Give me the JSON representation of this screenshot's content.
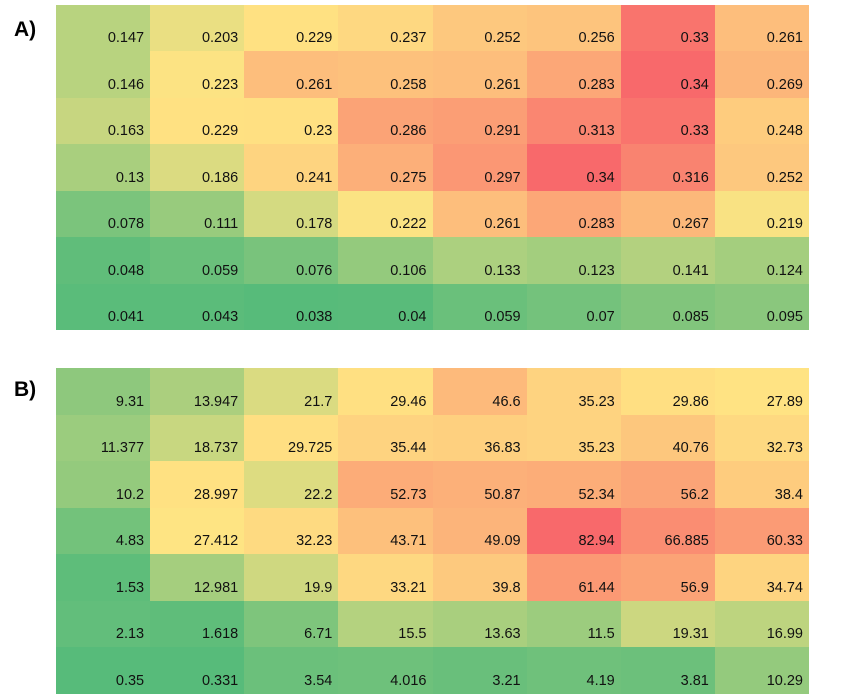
{
  "panels": [
    {
      "label": "A)"
    },
    {
      "label": "B)"
    }
  ],
  "chart_data": [
    {
      "type": "heatmap",
      "title": "A)",
      "color_scale": {
        "low": "#57bb7a",
        "mid": "#ffe483",
        "high": "#f8696b"
      },
      "values": [
        [
          0.147,
          0.203,
          0.229,
          0.237,
          0.252,
          0.256,
          0.33,
          0.261
        ],
        [
          0.146,
          0.223,
          0.261,
          0.258,
          0.261,
          0.283,
          0.34,
          0.269
        ],
        [
          0.163,
          0.229,
          0.23,
          0.286,
          0.291,
          0.313,
          0.33,
          0.248
        ],
        [
          0.13,
          0.186,
          0.241,
          0.275,
          0.297,
          0.34,
          0.316,
          0.252
        ],
        [
          0.078,
          0.111,
          0.178,
          0.222,
          0.261,
          0.283,
          0.267,
          0.219
        ],
        [
          0.048,
          0.059,
          0.076,
          0.106,
          0.133,
          0.123,
          0.141,
          0.124
        ],
        [
          0.041,
          0.043,
          0.038,
          0.04,
          0.059,
          0.07,
          0.085,
          0.095
        ]
      ],
      "labels": [
        [
          "0.147",
          "0.203",
          "0.229",
          "0.237",
          "0.252",
          "0.256",
          "0.33",
          "0.261"
        ],
        [
          "0.146",
          "0.223",
          "0.261",
          "0.258",
          "0.261",
          "0.283",
          "0.34",
          "0.269"
        ],
        [
          "0.163",
          "0.229",
          "0.23",
          "0.286",
          "0.291",
          "0.313",
          "0.33",
          "0.248"
        ],
        [
          "0.13",
          "0.186",
          "0.241",
          "0.275",
          "0.297",
          "0.34",
          "0.316",
          "0.252"
        ],
        [
          "0.078",
          "0.111",
          "0.178",
          "0.222",
          "0.261",
          "0.283",
          "0.267",
          "0.219"
        ],
        [
          "0.048",
          "0.059",
          "0.076",
          "0.106",
          "0.133",
          "0.123",
          "0.141",
          "0.124"
        ],
        [
          "0.041",
          "0.043",
          "0.038",
          "0.04",
          "0.059",
          "0.07",
          "0.085",
          "0.095"
        ]
      ]
    },
    {
      "type": "heatmap",
      "title": "B)",
      "color_scale": {
        "low": "#57bb7a",
        "mid": "#ffe483",
        "high": "#f8696b"
      },
      "values": [
        [
          9.31,
          13.947,
          21.7,
          29.46,
          46.6,
          35.23,
          29.86,
          27.89
        ],
        [
          11.377,
          18.737,
          29.725,
          35.44,
          36.83,
          35.23,
          40.76,
          32.73
        ],
        [
          10.2,
          28.997,
          22.2,
          52.73,
          50.87,
          52.34,
          56.2,
          38.4
        ],
        [
          4.83,
          27.412,
          32.23,
          43.71,
          49.09,
          82.94,
          66.885,
          60.33
        ],
        [
          1.53,
          12.981,
          19.9,
          33.21,
          39.8,
          61.44,
          56.9,
          34.74
        ],
        [
          2.13,
          1.618,
          6.71,
          15.5,
          13.63,
          11.5,
          19.31,
          16.99
        ],
        [
          0.35,
          0.331,
          3.54,
          4.016,
          3.21,
          4.19,
          3.81,
          10.29
        ]
      ],
      "labels": [
        [
          "9.31",
          "13.947",
          "21.7",
          "29.46",
          "46.6",
          "35.23",
          "29.86",
          "27.89"
        ],
        [
          "11.377",
          "18.737",
          "29.725",
          "35.44",
          "36.83",
          "35.23",
          "40.76",
          "32.73"
        ],
        [
          "10.2",
          "28.997",
          "22.2",
          "52.73",
          "50.87",
          "52.34",
          "56.2",
          "38.4"
        ],
        [
          "4.83",
          "27.412",
          "32.23",
          "43.71",
          "49.09",
          "82.94",
          "66.885",
          "60.33"
        ],
        [
          "1.53",
          "12.981",
          "19.9",
          "33.21",
          "39.8",
          "61.44",
          "56.9",
          "34.74"
        ],
        [
          "2.13",
          "1.618",
          "6.71",
          "15.5",
          "13.63",
          "11.5",
          "19.31",
          "16.99"
        ],
        [
          "0.35",
          "0.331",
          "3.54",
          "4.016",
          "3.21",
          "4.19",
          "3.81",
          "10.29"
        ]
      ]
    }
  ]
}
